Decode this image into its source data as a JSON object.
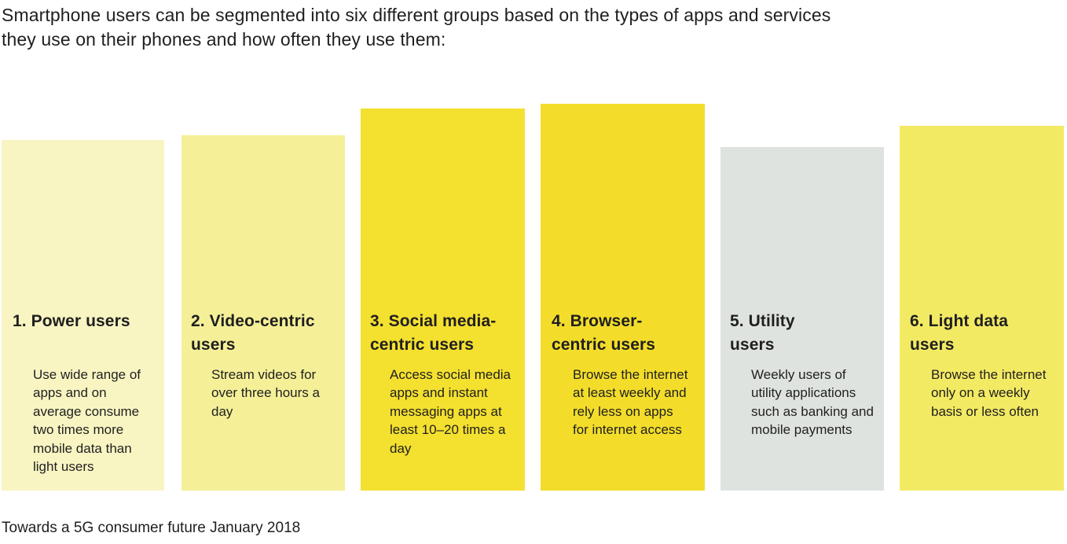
{
  "intro": "Smartphone users can be segmented into six different groups based on the types of apps and services they use on their phones and how often they use them:",
  "segments": [
    {
      "title": "1. Power users",
      "description": "Use wide range of apps and on average consume two times more mobile data than light users",
      "color": "#f9f5c3"
    },
    {
      "title": "2. Video-centric users",
      "description": "Stream videos for over three hours a day",
      "color": "#f5f098"
    },
    {
      "title": "3. Social media-centric users",
      "description": "Access social media apps and instant messaging apps at least 10–20 times a day",
      "color": "#f4e02f"
    },
    {
      "title": "4. Browser-centric users",
      "description": "Browse the internet at least weekly and rely less on apps for internet access",
      "color": "#f3dd2a"
    },
    {
      "title": "5. Utility users",
      "description": "Weekly users of utility applications such as banking and mobile payments",
      "color": "#dfe3df"
    },
    {
      "title": "6. Light data users",
      "description": "Browse the internet only on a weekly basis or less often",
      "color": "#f3ea64"
    }
  ],
  "source": "Towards a 5G consumer future January 2018"
}
